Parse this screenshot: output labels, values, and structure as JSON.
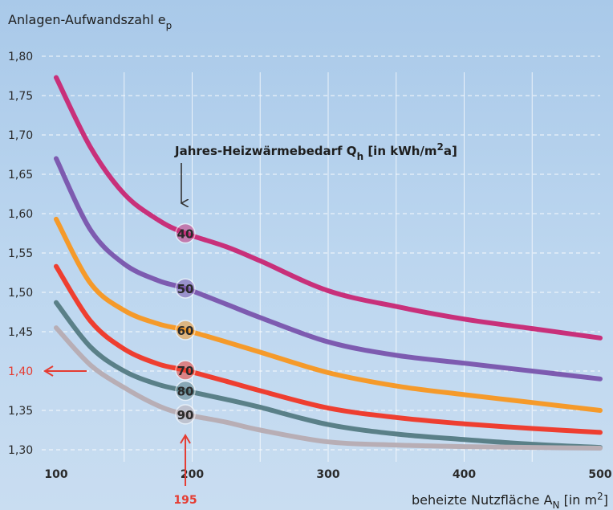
{
  "chart_data": {
    "type": "line",
    "ylabel": {
      "text": "Anlagen-Aufwandszahl e",
      "sub": "p"
    },
    "xlabel": {
      "text": "beheizte Nutzfläche A",
      "sub": "N",
      "mid": " [in m",
      "sup": "2",
      "tail": "]"
    },
    "legend_title": {
      "text": "Jahres-Heizwärmebedarf Q",
      "sub": "h",
      "mid": " [in kWh/m",
      "sup": "2",
      "tail": "a]"
    },
    "xlim": [
      100,
      500
    ],
    "ylim": [
      1.3,
      1.8
    ],
    "x_ticks": [
      "100",
      "200",
      "300",
      "400",
      "500"
    ],
    "x_tick_values": [
      100,
      200,
      300,
      400,
      500
    ],
    "y_ticks": [
      "1,30",
      "1,35",
      "1,40",
      "1,45",
      "1,50",
      "1,55",
      "1,60",
      "1,65",
      "1,70",
      "1,75",
      "1,80"
    ],
    "y_tick_values": [
      1.3,
      1.35,
      1.4,
      1.45,
      1.5,
      1.55,
      1.6,
      1.65,
      1.7,
      1.75,
      1.8
    ],
    "grid": true,
    "x": [
      100,
      125,
      150,
      175,
      195,
      225,
      250,
      300,
      350,
      400,
      450,
      500
    ],
    "series": [
      {
        "label": "40",
        "color": "#c8307a",
        "values": [
          1.773,
          1.685,
          1.625,
          1.592,
          1.575,
          1.558,
          1.54,
          1.502,
          1.482,
          1.466,
          1.454,
          1.442
        ]
      },
      {
        "label": "50",
        "color": "#7d5bb0",
        "values": [
          1.67,
          1.58,
          1.536,
          1.515,
          1.505,
          1.485,
          1.468,
          1.437,
          1.42,
          1.41,
          1.4,
          1.39
        ]
      },
      {
        "label": "60",
        "color": "#f59a2a",
        "values": [
          1.593,
          1.512,
          1.477,
          1.46,
          1.452,
          1.437,
          1.424,
          1.398,
          1.381,
          1.37,
          1.36,
          1.35
        ]
      },
      {
        "label": "70",
        "color": "#ee3e30",
        "values": [
          1.533,
          1.464,
          1.428,
          1.409,
          1.401,
          1.387,
          1.375,
          1.353,
          1.341,
          1.333,
          1.327,
          1.322
        ]
      },
      {
        "label": "80",
        "color": "#5a8088",
        "values": [
          1.487,
          1.431,
          1.4,
          1.383,
          1.375,
          1.364,
          1.354,
          1.332,
          1.32,
          1.313,
          1.307,
          1.303
        ]
      },
      {
        "label": "90",
        "color": "#b8aeb5",
        "values": [
          1.455,
          1.408,
          1.379,
          1.356,
          1.345,
          1.335,
          1.325,
          1.31,
          1.306,
          1.304,
          1.303,
          1.302
        ]
      }
    ],
    "marker_x": {
      "value": 195,
      "label": "195"
    },
    "marker_y": {
      "value": 1.4
    }
  }
}
